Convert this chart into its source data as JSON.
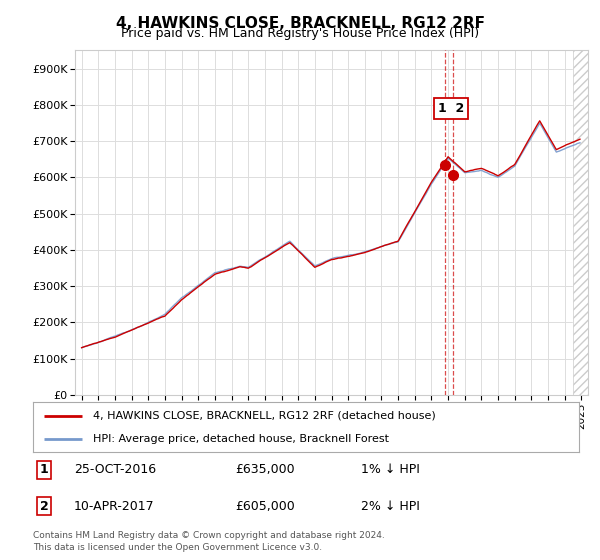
{
  "title": "4, HAWKINS CLOSE, BRACKNELL, RG12 2RF",
  "subtitle": "Price paid vs. HM Land Registry's House Price Index (HPI)",
  "ylim": [
    0,
    950000
  ],
  "yticks": [
    0,
    100000,
    200000,
    300000,
    400000,
    500000,
    600000,
    700000,
    800000,
    900000
  ],
  "ytick_labels": [
    "£0",
    "£100K",
    "£200K",
    "£300K",
    "£400K",
    "£500K",
    "£600K",
    "£700K",
    "£800K",
    "£900K"
  ],
  "background_color": "#ffffff",
  "grid_color": "#dddddd",
  "line_color_hpi": "#7799cc",
  "line_color_price": "#cc0000",
  "sale1_date": 2016.82,
  "sale1_price": 635000,
  "sale2_date": 2017.28,
  "sale2_price": 605000,
  "hatch_start": 2024.5,
  "xlim_left": 1994.6,
  "xlim_right": 2025.4,
  "legend_label1": "4, HAWKINS CLOSE, BRACKNELL, RG12 2RF (detached house)",
  "legend_label2": "HPI: Average price, detached house, Bracknell Forest",
  "table_row1": [
    "1",
    "25-OCT-2016",
    "£635,000",
    "1% ↓ HPI"
  ],
  "table_row2": [
    "2",
    "10-APR-2017",
    "£605,000",
    "2% ↓ HPI"
  ],
  "footnote": "Contains HM Land Registry data © Crown copyright and database right 2024.\nThis data is licensed under the Open Government Licence v3.0.",
  "title_fontsize": 11,
  "subtitle_fontsize": 9
}
